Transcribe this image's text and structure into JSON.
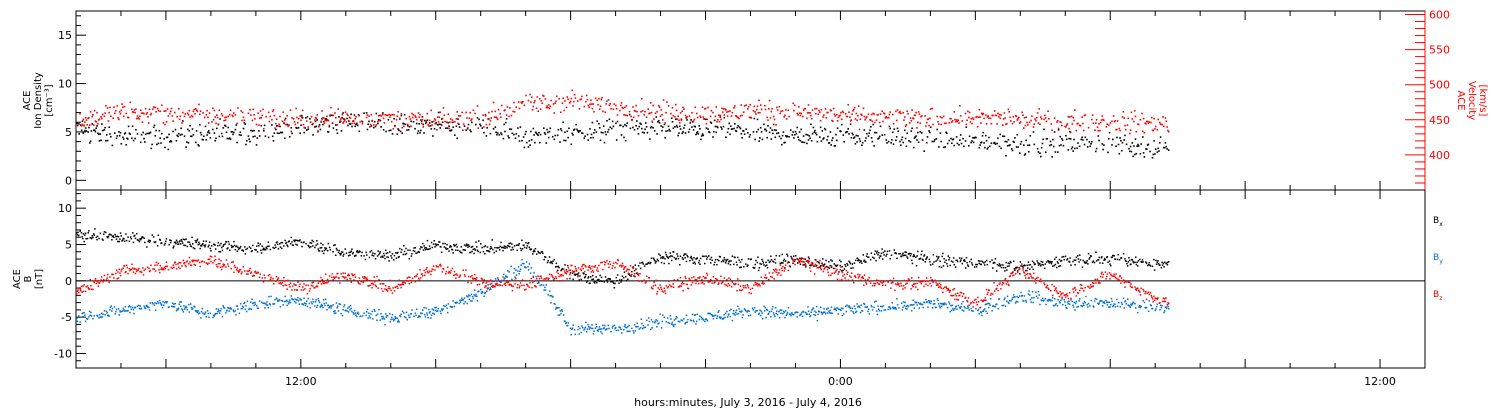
{
  "xlabel": "hours:minutes, July  3, 2016 - July  4, 2016",
  "chart_data": [
    {
      "type": "scatter",
      "x_unit": "hours from 2016-07-03 00:00",
      "xlim": [
        7,
        37
      ],
      "xticks": [
        {
          "x": 12,
          "label": "12:00"
        },
        {
          "x": 24,
          "label": "0:00"
        },
        {
          "x": 36,
          "label": "12:00"
        }
      ],
      "ylabel_left": [
        "ACE",
        "Ion Density",
        "[cm⁻³]"
      ],
      "ylim_left": [
        -1,
        17.5
      ],
      "yticks_left": [
        0,
        5,
        10,
        15
      ],
      "ylabel_right": [
        "ACE",
        "Velocity",
        "[km/s]"
      ],
      "ylim_right": [
        350,
        605
      ],
      "yticks_right": [
        400,
        450,
        500,
        550,
        600
      ],
      "series": [
        {
          "color": "#000000",
          "axis": "left",
          "x": [
            7.0,
            8.0,
            9.0,
            10.0,
            11.0,
            12.0,
            13.0,
            14.0,
            15.0,
            16.0,
            17.0,
            18.0,
            19.0,
            20.0,
            21.0,
            22.0,
            23.0,
            24.0,
            25.0,
            26.0,
            27.0,
            28.0,
            29.0,
            30.0,
            31.0
          ],
          "y": [
            5.5,
            4.5,
            4.6,
            4.8,
            5.0,
            5.6,
            6.2,
            5.8,
            5.7,
            5.6,
            4.5,
            5.0,
            5.3,
            5.6,
            5.4,
            5.1,
            4.8,
            4.9,
            4.6,
            4.3,
            4.1,
            3.9,
            4.0,
            3.8,
            3.5
          ]
        },
        {
          "color": "#ff0000",
          "axis": "right",
          "x": [
            7.0,
            8.0,
            9.0,
            10.0,
            11.0,
            12.0,
            13.0,
            14.0,
            15.0,
            16.0,
            17.0,
            18.0,
            19.0,
            20.0,
            21.0,
            22.0,
            23.0,
            24.0,
            25.0,
            26.0,
            27.0,
            28.0,
            29.0,
            30.0,
            31.0
          ],
          "y": [
            450,
            463,
            460,
            457,
            455,
            450,
            455,
            453,
            448,
            455,
            472,
            478,
            470,
            462,
            458,
            464,
            462,
            458,
            454,
            452,
            455,
            452,
            448,
            448,
            446
          ]
        }
      ]
    },
    {
      "type": "scatter",
      "x_unit": "hours from 2016-07-03 00:00",
      "xlim": [
        7,
        37
      ],
      "ylabel": [
        "ACE",
        "B",
        "[nT]"
      ],
      "ylim": [
        -12,
        12.5
      ],
      "yticks": [
        -10,
        -5,
        0,
        5,
        10
      ],
      "zero_line": true,
      "series": [
        {
          "name": "Bx",
          "label_main": "B",
          "label_sub": "x",
          "color": "#000000",
          "x": [
            7.0,
            8.0,
            9.0,
            10.0,
            11.0,
            12.0,
            13.0,
            14.0,
            15.0,
            16.0,
            17.0,
            18.0,
            19.0,
            20.0,
            21.0,
            22.0,
            23.0,
            24.0,
            25.0,
            26.0,
            27.0,
            28.0,
            29.0,
            30.0,
            31.0
          ],
          "y": [
            6.5,
            6.0,
            5.5,
            5.0,
            4.5,
            5.5,
            4.0,
            3.5,
            5.0,
            4.5,
            5.0,
            1.0,
            0.0,
            3.5,
            3.0,
            2.5,
            3.0,
            2.0,
            4.0,
            3.0,
            2.5,
            2.0,
            3.0,
            3.0,
            2.5
          ]
        },
        {
          "name": "By",
          "label_main": "B",
          "label_sub": "y",
          "color": "#0070d0",
          "x": [
            7.0,
            8.0,
            9.0,
            10.0,
            11.0,
            12.0,
            13.0,
            14.0,
            15.0,
            16.0,
            17.0,
            18.0,
            19.0,
            20.0,
            21.0,
            22.0,
            23.0,
            24.0,
            25.0,
            26.0,
            27.0,
            28.0,
            29.0,
            30.0,
            31.0
          ],
          "y": [
            -5.0,
            -4.0,
            -3.0,
            -4.5,
            -3.0,
            -2.5,
            -4.0,
            -5.0,
            -4.0,
            -1.5,
            2.5,
            -6.5,
            -6.5,
            -5.5,
            -5.0,
            -4.0,
            -4.5,
            -4.0,
            -3.5,
            -3.0,
            -4.0,
            -2.0,
            -3.0,
            -3.0,
            -3.5
          ]
        },
        {
          "name": "Bz",
          "label_main": "B",
          "label_sub": "z",
          "color": "#ff0000",
          "x": [
            7.0,
            8.0,
            9.0,
            10.0,
            11.0,
            12.0,
            13.0,
            14.0,
            15.0,
            16.0,
            17.0,
            18.0,
            19.0,
            20.0,
            21.0,
            22.0,
            23.0,
            24.0,
            25.0,
            26.0,
            27.0,
            28.0,
            29.0,
            30.0,
            31.0
          ],
          "y": [
            -1.5,
            1.5,
            2.0,
            3.0,
            1.0,
            -1.0,
            1.0,
            -1.0,
            2.0,
            0.0,
            -0.5,
            1.5,
            2.5,
            -1.0,
            0.5,
            -1.0,
            3.0,
            1.0,
            -0.5,
            0.0,
            -3.0,
            1.5,
            -2.0,
            1.0,
            -2.5
          ]
        }
      ]
    }
  ]
}
